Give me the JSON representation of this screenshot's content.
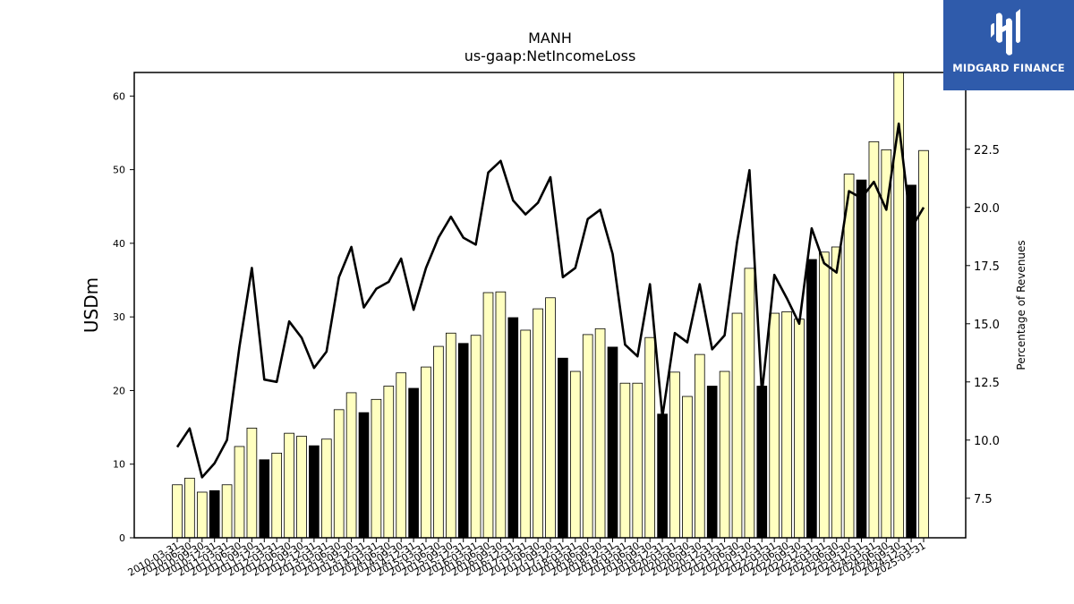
{
  "brand": {
    "name": "MIDGARD FINANCE"
  },
  "chart_data": {
    "type": "bar",
    "title": "MANH",
    "subtitle": "us-gaap:NetIncomeLoss",
    "ylabel": "USDm",
    "y2label": "Percentage of Revenues",
    "ylim": [
      0,
      63.2
    ],
    "y2lim": [
      5.8,
      25.8
    ],
    "yticks": [
      0,
      10,
      20,
      30,
      40,
      50,
      60
    ],
    "y2ticks": [
      7.5,
      10.0,
      12.5,
      15.0,
      17.5,
      20.0,
      22.5
    ],
    "grid": false,
    "colors": {
      "quarter_bar": "#ffffc0",
      "year_bar": "#000000",
      "line": "#000000"
    },
    "categories": [
      "2010-03-31",
      "2010-06-30",
      "2010-09-30",
      "2010-12-31",
      "2011-03-31",
      "2011-06-30",
      "2011-09-30",
      "2011-12-31",
      "2012-03-31",
      "2012-06-30",
      "2012-09-30",
      "2012-12-31",
      "2013-03-31",
      "2013-06-30",
      "2013-09-30",
      "2013-12-31",
      "2014-03-31",
      "2014-06-30",
      "2014-09-30",
      "2014-12-31",
      "2015-03-31",
      "2015-06-30",
      "2015-09-30",
      "2015-12-31",
      "2016-03-31",
      "2016-06-30",
      "2016-09-30",
      "2016-12-31",
      "2017-03-31",
      "2017-06-30",
      "2017-09-30",
      "2017-12-31",
      "2018-03-31",
      "2018-06-30",
      "2018-09-30",
      "2018-12-31",
      "2019-03-31",
      "2019-06-30",
      "2019-09-30",
      "2019-12-31",
      "2020-03-31",
      "2020-06-30",
      "2020-09-30",
      "2020-12-31",
      "2021-03-31",
      "2021-06-30",
      "2021-09-30",
      "2021-12-31",
      "2022-03-31",
      "2022-06-30",
      "2022-09-30",
      "2022-12-31",
      "2023-03-31",
      "2023-06-30",
      "2023-09-30",
      "2023-12-31",
      "2024-03-31",
      "2024-06-30",
      "2024-09-30",
      "2024-12-31",
      "2025-03-31"
    ],
    "series": [
      {
        "kind": "bar",
        "values": [
          7.2,
          8.1,
          6.2,
          6.4,
          7.2,
          12.4,
          14.9,
          10.6,
          11.5,
          14.2,
          13.8,
          12.5,
          13.4,
          17.4,
          19.7,
          17.0,
          18.8,
          20.6,
          22.4,
          20.3,
          23.2,
          26.0,
          27.8,
          26.4,
          27.5,
          33.3,
          33.4,
          29.9,
          28.2,
          31.1,
          32.6,
          24.4,
          22.6,
          27.6,
          28.4,
          25.9,
          21.0,
          21.0,
          27.2,
          16.8,
          22.5,
          19.2,
          24.9,
          20.6,
          22.6,
          30.5,
          36.6,
          20.6,
          30.5,
          30.7,
          29.7,
          37.8,
          38.8,
          39.5,
          49.4,
          48.6,
          53.8,
          52.7,
          63.5,
          47.9,
          52.6
        ],
        "is_year_end": [
          false,
          false,
          false,
          true,
          false,
          false,
          false,
          true,
          false,
          false,
          false,
          true,
          false,
          false,
          false,
          true,
          false,
          false,
          false,
          true,
          false,
          false,
          false,
          true,
          false,
          false,
          false,
          true,
          false,
          false,
          false,
          true,
          false,
          false,
          false,
          true,
          false,
          false,
          false,
          true,
          false,
          false,
          false,
          true,
          false,
          false,
          false,
          true,
          false,
          false,
          false,
          true,
          false,
          false,
          false,
          true,
          false,
          false,
          false,
          true,
          false
        ]
      },
      {
        "kind": "line",
        "axis": "right",
        "values": [
          9.7,
          10.5,
          8.4,
          9.0,
          10.0,
          14.0,
          17.4,
          12.6,
          12.5,
          15.1,
          14.4,
          13.1,
          13.8,
          17.0,
          18.3,
          15.7,
          16.5,
          16.8,
          17.8,
          15.6,
          17.4,
          18.7,
          19.6,
          18.7,
          18.4,
          21.5,
          22.0,
          20.3,
          19.7,
          20.2,
          21.3,
          17.0,
          17.4,
          19.5,
          19.9,
          18.0,
          14.1,
          13.6,
          16.7,
          11.0,
          14.6,
          14.2,
          16.7,
          13.9,
          14.5,
          18.5,
          21.6,
          12.0,
          17.1,
          16.1,
          15.0,
          19.1,
          17.6,
          17.2,
          20.7,
          20.4,
          21.1,
          19.9,
          23.6,
          19.1,
          20.0
        ]
      }
    ]
  }
}
